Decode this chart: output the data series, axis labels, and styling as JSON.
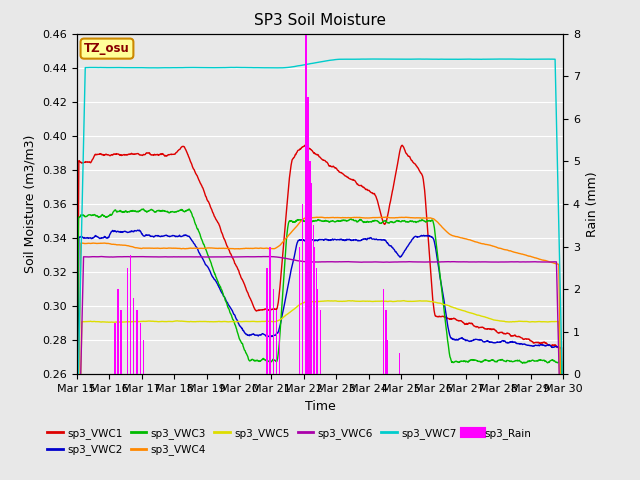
{
  "title": "SP3 Soil Moisture",
  "xlabel": "Time",
  "ylabel_left": "Soil Moisture (m3/m3)",
  "ylabel_right": "Rain (mm)",
  "ylim_left": [
    0.26,
    0.46
  ],
  "ylim_right": [
    0.0,
    8.0
  ],
  "yticks_left": [
    0.26,
    0.28,
    0.3,
    0.32,
    0.34,
    0.36,
    0.38,
    0.4,
    0.42,
    0.44,
    0.46
  ],
  "yticks_right": [
    0.0,
    1.0,
    2.0,
    3.0,
    4.0,
    5.0,
    6.0,
    7.0,
    8.0
  ],
  "xtick_labels": [
    "Mar 15",
    "Mar 16",
    "Mar 17",
    "Mar 18",
    "Mar 19",
    "Mar 20",
    "Mar 21",
    "Mar 22",
    "Mar 23",
    "Mar 24",
    "Mar 25",
    "Mar 26",
    "Mar 27",
    "Mar 28",
    "Mar 29",
    "Mar 30"
  ],
  "background_color": "#e8e8e8",
  "fig_bg_color": "#e8e8e8",
  "colors": {
    "sp3_VWC1": "#dd0000",
    "sp3_VWC2": "#0000cc",
    "sp3_VWC3": "#00bb00",
    "sp3_VWC4": "#ff8800",
    "sp3_VWC5": "#dddd00",
    "sp3_VWC6": "#aa00aa",
    "sp3_VWC7": "#00cccc",
    "sp3_Rain": "#ff00ff"
  },
  "label_box": "TZ_osu",
  "label_box_facecolor": "#ffff99",
  "label_box_edgecolor": "#cc8800",
  "label_text_color": "#880000",
  "n_days": 15,
  "n_pts_per_day": 96
}
